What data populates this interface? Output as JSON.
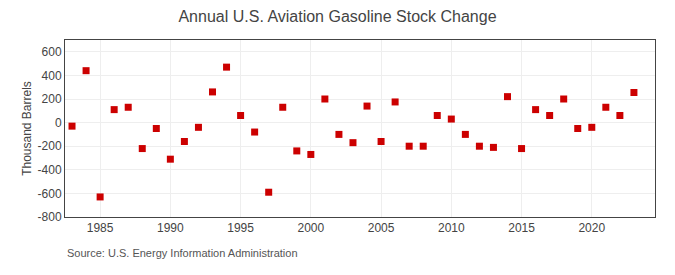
{
  "chart_data": {
    "type": "scatter",
    "title": "Annual U.S. Aviation Gasoline Stock Change",
    "ylabel": "Thousand Barrels",
    "annotations": [
      "Source: U.S. Energy Information Administration"
    ],
    "x": [
      1983,
      1984,
      1985,
      1986,
      1987,
      1988,
      1989,
      1990,
      1991,
      1992,
      1993,
      1994,
      1995,
      1996,
      1997,
      1998,
      1999,
      2000,
      2001,
      2002,
      2003,
      2004,
      2005,
      2006,
      2007,
      2008,
      2009,
      2010,
      2011,
      2012,
      2013,
      2014,
      2015,
      2016,
      2017,
      2018,
      2019,
      2020,
      2021,
      2022,
      2023
    ],
    "values": [
      -30,
      440,
      -630,
      110,
      130,
      -220,
      -50,
      -310,
      -160,
      -40,
      260,
      470,
      60,
      -80,
      -590,
      130,
      -240,
      -270,
      200,
      -100,
      -170,
      140,
      -160,
      175,
      -200,
      -200,
      60,
      30,
      -100,
      -200,
      -210,
      220,
      -220,
      110,
      60,
      200,
      -50,
      -40,
      130,
      60,
      255
    ],
    "color": "#CC0000",
    "marker": "square",
    "xlim": [
      1982.5,
      2024.5
    ],
    "xticks": [
      1985,
      1990,
      1995,
      2000,
      2005,
      2010,
      2015,
      2020
    ],
    "ylim": [
      -800,
      700
    ],
    "yticks": [
      -800,
      -600,
      -400,
      -200,
      0,
      200,
      400,
      600
    ],
    "grid": true
  }
}
